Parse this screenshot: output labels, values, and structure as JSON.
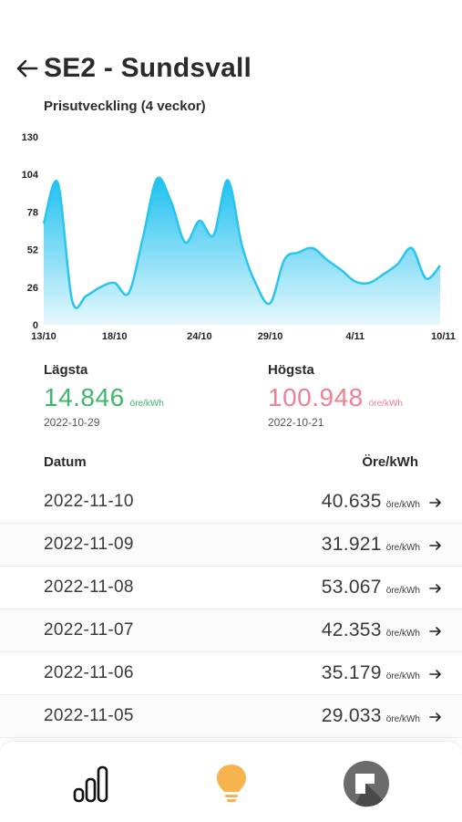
{
  "header": {
    "title": "SE2 - Sundsvall"
  },
  "chart_data": {
    "type": "area",
    "title": "Prisutveckling (4 veckor)",
    "ylim": [
      0,
      130
    ],
    "yticks": [
      0,
      26,
      52,
      78,
      104,
      130
    ],
    "xtick_labels": [
      "13/10",
      "18/10",
      "24/10",
      "29/10",
      "4/11",
      "10/11"
    ],
    "x": [
      "13/10",
      "14/10",
      "15/10",
      "16/10",
      "17/10",
      "18/10",
      "19/10",
      "20/10",
      "21/10",
      "22/10",
      "23/10",
      "24/10",
      "25/10",
      "26/10",
      "27/10",
      "28/10",
      "29/10",
      "30/10",
      "31/10",
      "1/11",
      "2/11",
      "3/11",
      "4/11",
      "5/11",
      "6/11",
      "7/11",
      "8/11",
      "9/11",
      "10/11"
    ],
    "values": [
      70,
      98,
      17,
      20,
      26,
      29,
      22,
      60,
      101,
      85,
      57,
      72,
      62,
      100,
      55,
      28,
      15,
      45,
      50,
      53,
      45,
      38,
      30,
      29,
      35,
      42,
      53,
      32,
      41
    ],
    "fill_color": "#29c5f0",
    "grid": false
  },
  "stats": {
    "low": {
      "label": "Lägsta",
      "value": "14.846",
      "unit": "öre/kWh",
      "date": "2022-10-29",
      "color": "#3fb76a"
    },
    "high": {
      "label": "Högsta",
      "value": "100.948",
      "unit": "öre/kWh",
      "date": "2022-10-21",
      "color": "#ef7f95"
    }
  },
  "table": {
    "col_date": "Datum",
    "col_price": "Öre/kWh",
    "rows": [
      {
        "date": "2022-11-10",
        "value": "40.635",
        "unit": "öre/kWh"
      },
      {
        "date": "2022-11-09",
        "value": "31.921",
        "unit": "öre/kWh"
      },
      {
        "date": "2022-11-08",
        "value": "53.067",
        "unit": "öre/kWh"
      },
      {
        "date": "2022-11-07",
        "value": "42.353",
        "unit": "öre/kWh"
      },
      {
        "date": "2022-11-06",
        "value": "35.179",
        "unit": "öre/kWh"
      },
      {
        "date": "2022-11-05",
        "value": "29.033",
        "unit": "öre/kWh"
      }
    ]
  },
  "nav": {
    "items": [
      {
        "icon": "bar-chart-icon"
      },
      {
        "icon": "lightbulb-icon",
        "active_color": "#f7b34d"
      },
      {
        "icon": "app-logo-icon"
      }
    ]
  }
}
